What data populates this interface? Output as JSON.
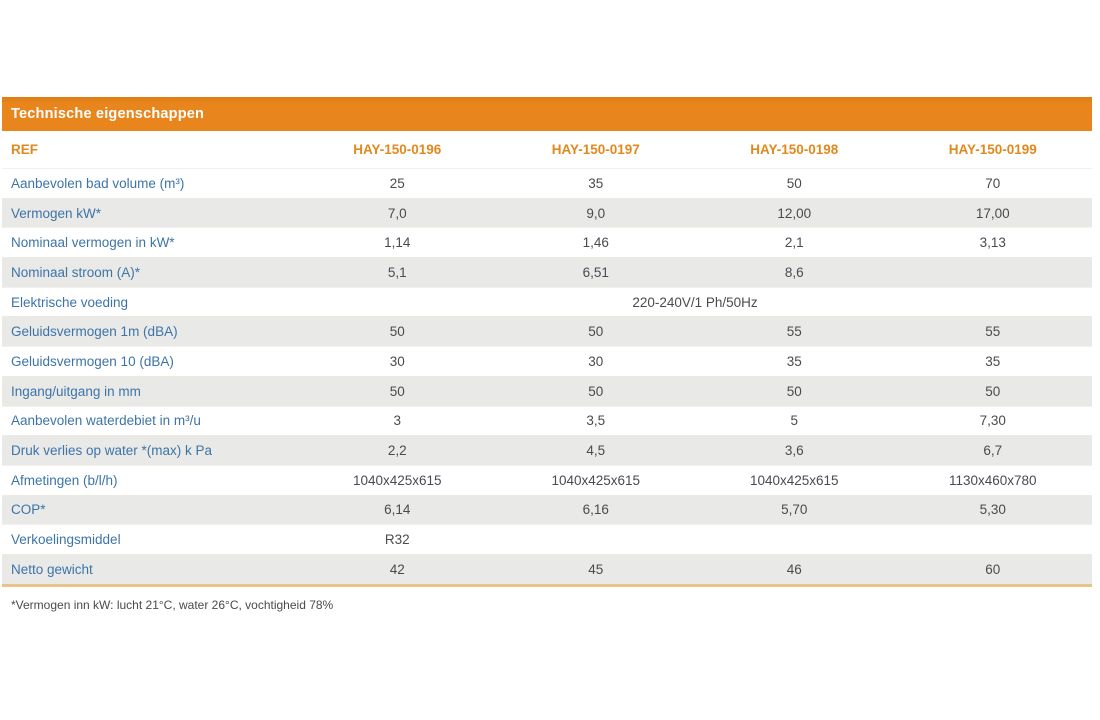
{
  "title_bar": "Technische eigenschappen",
  "colors": {
    "header_bar_orange": "#e8861d",
    "header_text_orange": "#e0891e",
    "row_label_blue": "#3d74a8",
    "value_text_gray": "#4b4b4d",
    "stripe_gray": "#e9e9e7",
    "bottom_border_tan": "#ebc288"
  },
  "table": {
    "ref_label": "REF",
    "columns": [
      "HAY-150-0196",
      "HAY-150-0197",
      "HAY-150-0198",
      "HAY-150-0199"
    ],
    "rows": [
      {
        "label": "Aanbevolen bad volume (m³)",
        "values": [
          "25",
          "35",
          "50",
          "70"
        ]
      },
      {
        "label": "Vermogen kW*",
        "values": [
          "7,0",
          "9,0",
          "12,00",
          "17,00"
        ]
      },
      {
        "label": "Nominaal vermogen in kW*",
        "values": [
          "1,14",
          "1,46",
          "2,1",
          "3,13"
        ]
      },
      {
        "label": "Nominaal stroom (A)*",
        "values": [
          "5,1",
          "6,51",
          "8,6",
          ""
        ]
      },
      {
        "label": "Elektrische voeding",
        "span_value": "220-240V/1 Ph/50Hz"
      },
      {
        "label": "Geluidsvermogen 1m (dBA)",
        "values": [
          "50",
          "50",
          "55",
          "55"
        ]
      },
      {
        "label": "Geluidsvermogen 10 (dBA)",
        "values": [
          "30",
          "30",
          "35",
          "35"
        ]
      },
      {
        "label": "Ingang/uitgang in mm",
        "values": [
          "50",
          "50",
          "50",
          "50"
        ]
      },
      {
        "label": "Aanbevolen waterdebiet in m³/u",
        "values": [
          "3",
          "3,5",
          "5",
          "7,30"
        ]
      },
      {
        "label": "Druk verlies op water *(max) k Pa",
        "values": [
          "2,2",
          "4,5",
          "3,6",
          "6,7"
        ]
      },
      {
        "label": "Afmetingen (b/l/h)",
        "values": [
          "1040x425x615",
          "1040x425x615",
          "1040x425x615",
          "1130x460x780"
        ]
      },
      {
        "label": "COP*",
        "values": [
          "6,14",
          "6,16",
          "5,70",
          "5,30"
        ]
      },
      {
        "label": "Verkoelingsmiddel",
        "values": [
          "R32",
          "",
          "",
          ""
        ]
      },
      {
        "label": "Netto gewicht",
        "values": [
          "42",
          "45",
          "46",
          "60"
        ]
      }
    ]
  },
  "footnote": "*Vermogen inn kW: lucht 21°C, water 26°C, vochtigheid 78%"
}
